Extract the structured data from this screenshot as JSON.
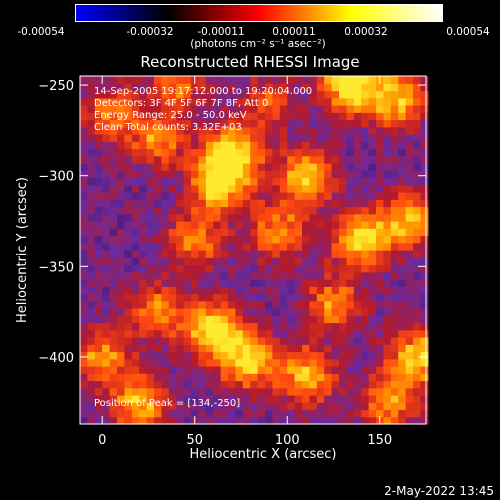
{
  "colorbar": {
    "ticks": [
      "-0.00054",
      "-0.00032",
      "-0.00011",
      "0.00011",
      "0.00032",
      "0.00054"
    ],
    "unit_label": "(photons cm⁻² s⁻¹ asec⁻²)",
    "range": [
      -0.00054,
      0.00054
    ],
    "colors": [
      "#0000ff",
      "#000000",
      "#ff0000",
      "#ffff00",
      "#ffffff"
    ]
  },
  "chart_data": {
    "type": "heatmap",
    "title": "Reconstructed RHESSI Image",
    "xlabel": "Heliocentric X (arcsec)",
    "ylabel": "Heliocentric Y (arcsec)",
    "xlim": [
      -12,
      175
    ],
    "ylim": [
      -437,
      -245
    ],
    "xticks": [
      0,
      50,
      100,
      150
    ],
    "yticks": [
      -250,
      -300,
      -350,
      -400
    ],
    "annotations": [
      "14-Sep-2005 19:17:12.000 to 19:20:04.000",
      "Detectors: 3F 4F 5F 6F 7F 8F, Att 0",
      "Energy Range: 25.0 - 50.0 keV",
      "Clean     Total counts: 3.32E+03"
    ],
    "peak_label": "Position of Peak = [134,-250]",
    "peak": [
      134,
      -250
    ],
    "pixel_size_arcsec": 4,
    "colormap": [
      "#2a0b4d",
      "#6a2aa0",
      "#b51a2a",
      "#ff4a10",
      "#ffa000",
      "#ffea30"
    ],
    "hotspots": [
      {
        "x": 70,
        "y": -288,
        "v": 1.0
      },
      {
        "x": 63,
        "y": -305,
        "v": 0.8
      },
      {
        "x": 134,
        "y": -250,
        "v": 0.95
      },
      {
        "x": 160,
        "y": -258,
        "v": 0.75
      },
      {
        "x": 30,
        "y": -280,
        "v": 0.55
      },
      {
        "x": 5,
        "y": -265,
        "v": 0.5
      },
      {
        "x": 110,
        "y": -300,
        "v": 0.7
      },
      {
        "x": 140,
        "y": -335,
        "v": 0.85
      },
      {
        "x": 165,
        "y": -325,
        "v": 0.7
      },
      {
        "x": 95,
        "y": -330,
        "v": 0.6
      },
      {
        "x": 50,
        "y": -335,
        "v": 0.55
      },
      {
        "x": 60,
        "y": -385,
        "v": 0.8
      },
      {
        "x": 78,
        "y": -400,
        "v": 0.9
      },
      {
        "x": 30,
        "y": -375,
        "v": 0.55
      },
      {
        "x": 0,
        "y": -400,
        "v": 0.6
      },
      {
        "x": 20,
        "y": -425,
        "v": 0.7
      },
      {
        "x": 110,
        "y": -410,
        "v": 0.75
      },
      {
        "x": 170,
        "y": -400,
        "v": 0.8
      },
      {
        "x": 125,
        "y": -370,
        "v": 0.55
      },
      {
        "x": 155,
        "y": -425,
        "v": 0.6
      },
      {
        "x": 40,
        "y": -250,
        "v": 0.45
      },
      {
        "x": 90,
        "y": -260,
        "v": 0.4
      }
    ]
  },
  "timestamp": "2-May-2022 13:45"
}
